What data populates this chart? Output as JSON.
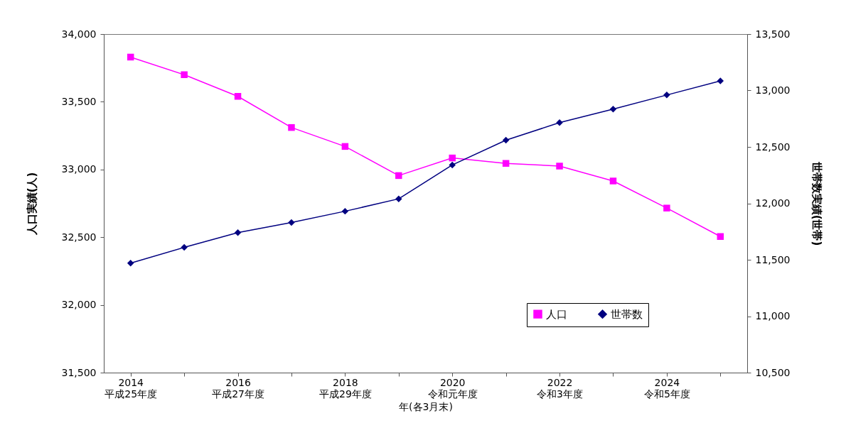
{
  "chart_data": {
    "type": "line",
    "xlabel": "年(各3月末)",
    "ylabel": "人口実績(人)",
    "y2label": "世帯数実績(世帯)",
    "categories": [
      "2014\n平成25年度",
      null,
      "2016\n平成27年度",
      null,
      "2018\n平成29年度",
      null,
      "2020\n令和元年度",
      null,
      "2022\n令和3年度",
      null,
      "2024\n令和5年度",
      null
    ],
    "series": [
      {
        "name": "人口",
        "color": "#ff00ff",
        "marker": "square",
        "values": [
          33830,
          33700,
          33540,
          33310,
          33170,
          32955,
          33085,
          33045,
          33025,
          32915,
          32715,
          32505
        ]
      },
      {
        "name": "世帯数",
        "color": "#000080",
        "marker": "diamond",
        "axis": "y2",
        "values": [
          11470,
          11610,
          11740,
          11830,
          11930,
          12040,
          12340,
          12560,
          12715,
          12835,
          12960,
          13085
        ]
      }
    ],
    "ylim": [
      31500,
      34000
    ],
    "yticks": [
      {
        "value": 31500,
        "label": "31,500"
      },
      {
        "value": 32000,
        "label": "32,000"
      },
      {
        "value": 32500,
        "label": "32,500"
      },
      {
        "value": 33000,
        "label": "33,000"
      },
      {
        "value": 33500,
        "label": "33,500"
      },
      {
        "value": 34000,
        "label": "34,000"
      }
    ],
    "y2lim": [
      10500,
      13500
    ],
    "y2ticks": [
      {
        "value": 10500,
        "label": "10,500"
      },
      {
        "value": 11000,
        "label": "11,000"
      },
      {
        "value": 11500,
        "label": "11,500"
      },
      {
        "value": 12000,
        "label": "12,000"
      },
      {
        "value": 12500,
        "label": "12,500"
      },
      {
        "value": 13000,
        "label": "13,000"
      },
      {
        "value": 13500,
        "label": "13,500"
      }
    ],
    "legend": "bottom right",
    "grid": false
  }
}
